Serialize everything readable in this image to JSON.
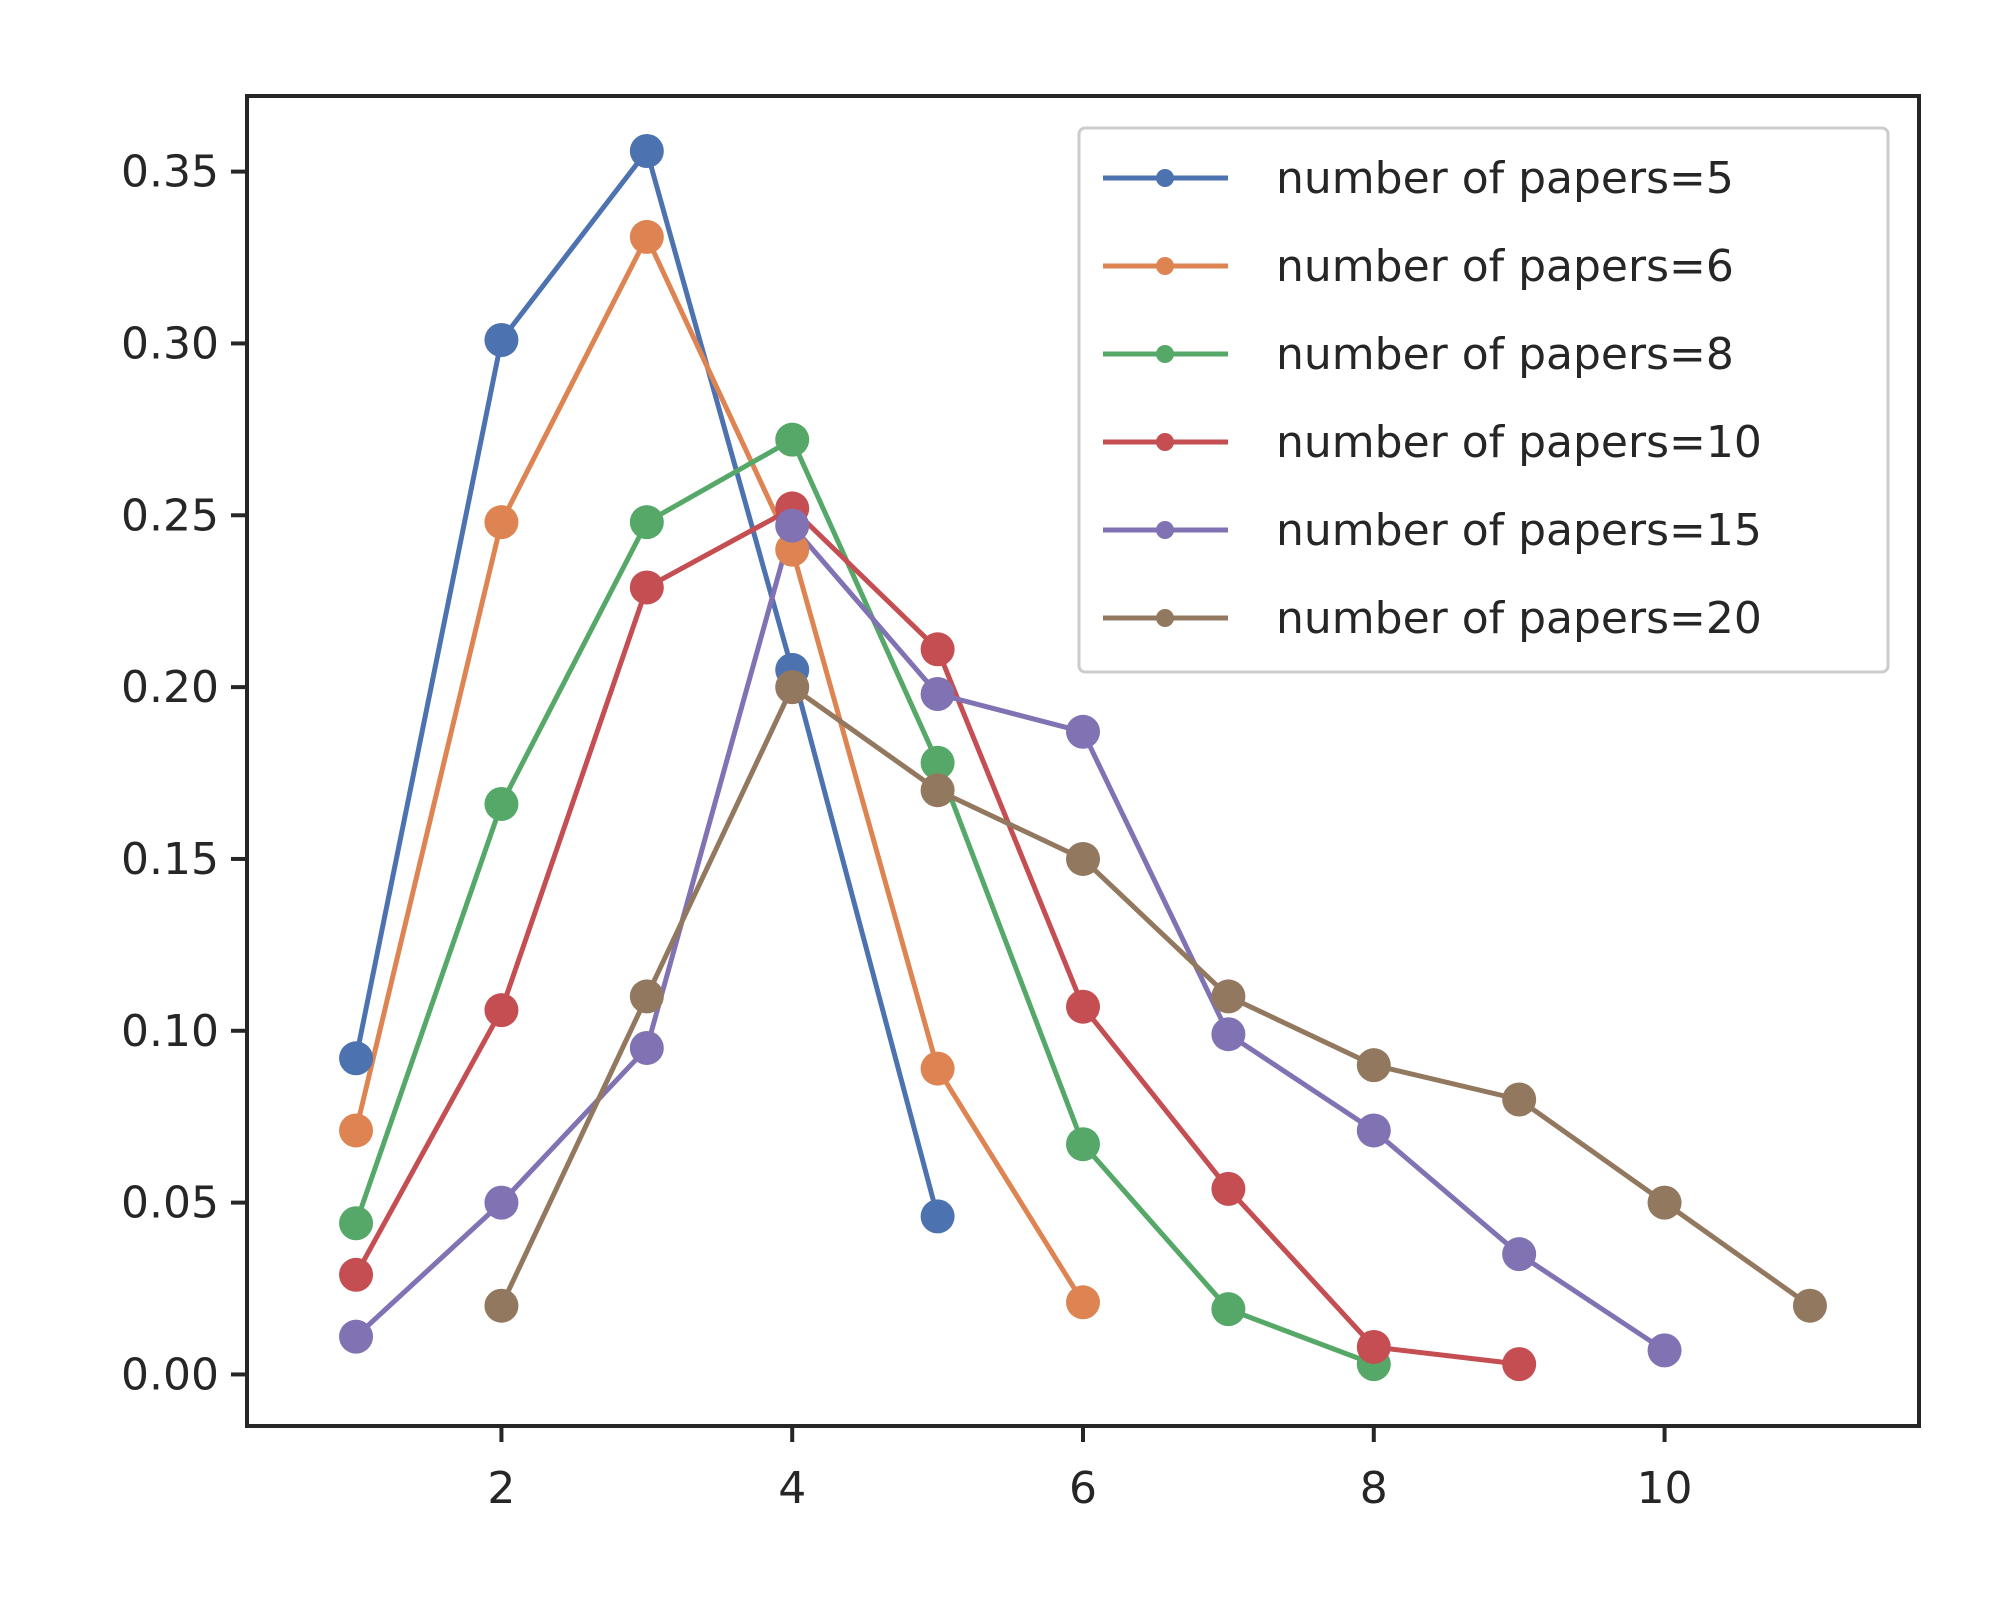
{
  "chart_data": {
    "type": "line",
    "title": "",
    "xlabel": "",
    "ylabel": "",
    "xlim": [
      0.25,
      11.75
    ],
    "ylim": [
      -0.015,
      0.372
    ],
    "xticks": [
      2,
      4,
      6,
      8,
      10
    ],
    "yticks": [
      0.0,
      0.05,
      0.1,
      0.15,
      0.2,
      0.25,
      0.3,
      0.35
    ],
    "xtick_labels": [
      "2",
      "4",
      "6",
      "8",
      "10"
    ],
    "ytick_labels": [
      "0.00",
      "0.05",
      "0.10",
      "0.15",
      "0.20",
      "0.25",
      "0.30",
      "0.35"
    ],
    "grid": false,
    "legend_position": "top-right",
    "series": [
      {
        "name": "number of papers=5",
        "color": "#4c72b0",
        "x": [
          1,
          2,
          3,
          4,
          5
        ],
        "y": [
          0.092,
          0.301,
          0.356,
          0.205,
          0.046
        ]
      },
      {
        "name": "number of papers=6",
        "color": "#dd8452",
        "x": [
          1,
          2,
          3,
          4,
          5,
          6
        ],
        "y": [
          0.071,
          0.248,
          0.331,
          0.24,
          0.089,
          0.021
        ]
      },
      {
        "name": "number of papers=8",
        "color": "#55a868",
        "x": [
          1,
          2,
          3,
          4,
          5,
          6,
          7,
          8
        ],
        "y": [
          0.044,
          0.166,
          0.248,
          0.272,
          0.178,
          0.067,
          0.019,
          0.003
        ]
      },
      {
        "name": "number of papers=10",
        "color": "#c44e52",
        "x": [
          1,
          2,
          3,
          4,
          5,
          6,
          7,
          8,
          9
        ],
        "y": [
          0.029,
          0.106,
          0.229,
          0.252,
          0.211,
          0.107,
          0.054,
          0.008,
          0.003
        ]
      },
      {
        "name": "number of papers=15",
        "color": "#8172b3",
        "x": [
          1,
          2,
          3,
          4,
          5,
          6,
          7,
          8,
          9,
          10
        ],
        "y": [
          0.011,
          0.05,
          0.095,
          0.247,
          0.198,
          0.187,
          0.099,
          0.071,
          0.035,
          0.007
        ]
      },
      {
        "name": "number of papers=20",
        "color": "#937860",
        "x": [
          2,
          3,
          4,
          5,
          6,
          7,
          8,
          9,
          10,
          11
        ],
        "y": [
          0.02,
          0.11,
          0.2,
          0.17,
          0.15,
          0.11,
          0.09,
          0.08,
          0.05,
          0.02
        ]
      }
    ]
  }
}
